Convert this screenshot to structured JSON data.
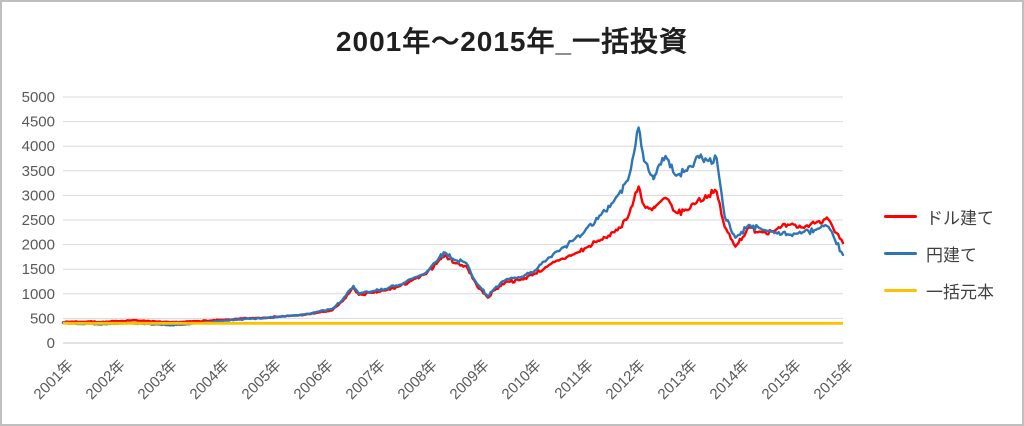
{
  "title": "2001年～2015年_一括投資",
  "colors": {
    "dollar_series": "#FF0000",
    "yen_series": "#2E75B6",
    "principal_series": "#FFC000",
    "gridline": "#D9D9D9",
    "axis_line": "#C6C6C6",
    "tick_text": "#595959",
    "title_text": "#1F1F1F",
    "frame_border": "#BFBFBF"
  },
  "chart_data": {
    "type": "line",
    "title": "2001年～2015年_一括投資",
    "xlabel": "",
    "ylabel": "",
    "ylim": [
      0,
      5000
    ],
    "y_ticks": [
      0,
      500,
      1000,
      1500,
      2000,
      2500,
      3000,
      3500,
      4000,
      4500,
      5000
    ],
    "x_tick_labels": [
      "2001年",
      "2002年",
      "2003年",
      "2004年",
      "2005年",
      "2006年",
      "2007年",
      "2008年",
      "2009年",
      "2010年",
      "2011年",
      "2012年",
      "2013年",
      "2014年",
      "2015年",
      "2015年"
    ],
    "grid": "horizontal",
    "legend_position": "right",
    "x_unit": "year (fractional)",
    "x": [
      2001.0,
      2001.17,
      2001.33,
      2001.5,
      2001.67,
      2001.83,
      2002.0,
      2002.25,
      2002.5,
      2002.75,
      2003.0,
      2003.25,
      2003.5,
      2003.75,
      2004.0,
      2004.25,
      2004.5,
      2004.75,
      2005.0,
      2005.25,
      2005.5,
      2005.75,
      2006.0,
      2006.2,
      2006.4,
      2006.5,
      2006.75,
      2007.0,
      2007.25,
      2007.5,
      2007.75,
      2008.0,
      2008.1,
      2008.3,
      2008.5,
      2008.7,
      2008.9,
      2009.0,
      2009.25,
      2009.5,
      2009.75,
      2010.0,
      2010.25,
      2010.5,
      2010.75,
      2011.0,
      2011.25,
      2011.5,
      2011.7,
      2011.8,
      2011.95,
      2012.0,
      2012.2,
      2012.4,
      2012.6,
      2012.8,
      2013.0,
      2013.15,
      2013.3,
      2013.5,
      2013.75,
      2014.0,
      2014.25,
      2014.5,
      2014.75,
      2015.0,
      2015.2,
      2015.35,
      2015.5
    ],
    "series": [
      {
        "name": "ドル建て",
        "color": "#FF0000",
        "values": [
          420,
          435,
          430,
          440,
          425,
          430,
          445,
          460,
          455,
          435,
          420,
          430,
          445,
          455,
          470,
          490,
          505,
          515,
          535,
          555,
          575,
          620,
          660,
          850,
          1130,
          980,
          1020,
          1070,
          1150,
          1280,
          1400,
          1700,
          1780,
          1620,
          1560,
          1150,
          920,
          1060,
          1250,
          1280,
          1400,
          1550,
          1700,
          1800,
          1950,
          2100,
          2250,
          2550,
          3180,
          2800,
          2700,
          2750,
          2950,
          2650,
          2700,
          2900,
          3000,
          3080,
          2360,
          1960,
          2350,
          2250,
          2300,
          2400,
          2350,
          2450,
          2550,
          2250,
          2030
        ]
      },
      {
        "name": "円建て",
        "color": "#2E75B6",
        "values": [
          410,
          395,
          385,
          395,
          380,
          385,
          395,
          405,
          390,
          380,
          360,
          375,
          400,
          425,
          455,
          475,
          495,
          505,
          530,
          555,
          585,
          640,
          690,
          880,
          1160,
          1000,
          1050,
          1100,
          1180,
          1310,
          1430,
          1750,
          1840,
          1680,
          1620,
          1200,
          950,
          1080,
          1300,
          1330,
          1450,
          1700,
          1900,
          2100,
          2350,
          2600,
          2900,
          3300,
          4380,
          3700,
          3400,
          3400,
          3800,
          3400,
          3500,
          3800,
          3700,
          3760,
          2570,
          2140,
          2400,
          2300,
          2250,
          2200,
          2250,
          2300,
          2380,
          2100,
          1790
        ]
      },
      {
        "name": "一括元本",
        "color": "#FFC000",
        "constant": 400
      }
    ]
  }
}
